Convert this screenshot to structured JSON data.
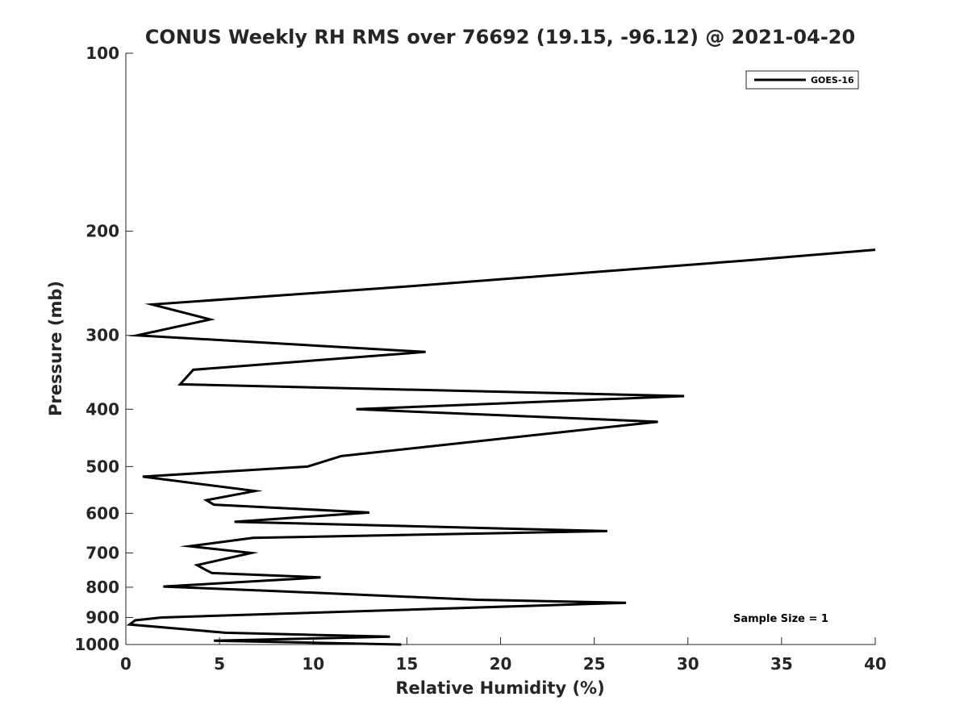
{
  "chart_data": {
    "type": "line",
    "title": "CONUS Weekly RH RMS over 76692 (19.15, -96.12) @ 2021-04-20",
    "xlabel": "Relative Humidity (%)",
    "ylabel": "Pressure (mb)",
    "xlim": [
      0,
      40
    ],
    "ylim": [
      100,
      1000
    ],
    "y_scale": "log",
    "y_reversed": true,
    "x_ticks": [
      "0",
      "5",
      "10",
      "15",
      "20",
      "25",
      "30",
      "35",
      "40"
    ],
    "y_ticks": [
      "100",
      "200",
      "300",
      "400",
      "500",
      "600",
      "700",
      "800",
      "900",
      "1000"
    ],
    "grid": false,
    "legend_position": "top-right",
    "series": [
      {
        "name": "GOES-16",
        "color": "#000000",
        "points": [
          {
            "x": 14.7,
            "y": 1000
          },
          {
            "x": 4.7,
            "y": 985
          },
          {
            "x": 14.1,
            "y": 970
          },
          {
            "x": 5.3,
            "y": 955
          },
          {
            "x": 0.2,
            "y": 925
          },
          {
            "x": 0.5,
            "y": 910
          },
          {
            "x": 1.9,
            "y": 900
          },
          {
            "x": 26.7,
            "y": 850
          },
          {
            "x": 18.7,
            "y": 840
          },
          {
            "x": 8.0,
            "y": 812
          },
          {
            "x": 2.0,
            "y": 798
          },
          {
            "x": 10.4,
            "y": 770
          },
          {
            "x": 4.6,
            "y": 757
          },
          {
            "x": 4.2,
            "y": 746
          },
          {
            "x": 3.8,
            "y": 734
          },
          {
            "x": 6.7,
            "y": 700
          },
          {
            "x": 3.4,
            "y": 682
          },
          {
            "x": 6.8,
            "y": 660
          },
          {
            "x": 25.7,
            "y": 643
          },
          {
            "x": 5.8,
            "y": 620
          },
          {
            "x": 13.0,
            "y": 598
          },
          {
            "x": 4.7,
            "y": 580
          },
          {
            "x": 4.3,
            "y": 570
          },
          {
            "x": 6.9,
            "y": 550
          },
          {
            "x": 0.9,
            "y": 520
          },
          {
            "x": 9.7,
            "y": 500
          },
          {
            "x": 11.5,
            "y": 480
          },
          {
            "x": 28.4,
            "y": 420
          },
          {
            "x": 12.3,
            "y": 400
          },
          {
            "x": 29.8,
            "y": 380
          },
          {
            "x": 2.9,
            "y": 363
          },
          {
            "x": 3.6,
            "y": 343
          },
          {
            "x": 16.0,
            "y": 320
          },
          {
            "x": 0.6,
            "y": 300
          },
          {
            "x": 4.5,
            "y": 282
          },
          {
            "x": 1.4,
            "y": 266
          },
          {
            "x": 15.0,
            "y": 248
          },
          {
            "x": 33.2,
            "y": 224
          },
          {
            "x": 40.0,
            "y": 215
          }
        ]
      }
    ],
    "annotations": [
      {
        "text": "Sample Size = 1"
      }
    ]
  }
}
